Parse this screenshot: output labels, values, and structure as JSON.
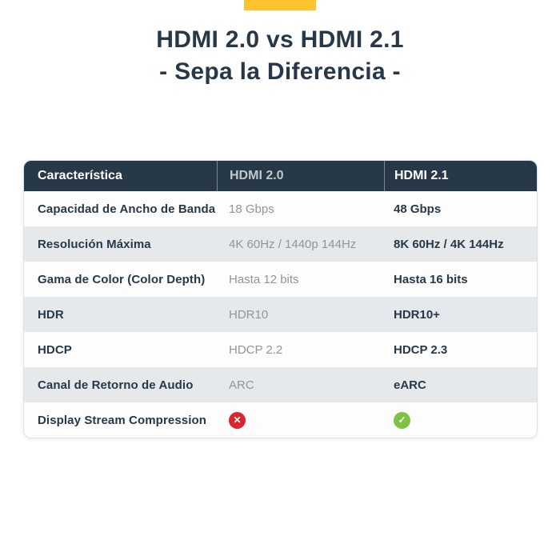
{
  "accent": {
    "bar_color": "#fdc42f"
  },
  "header": {
    "title_line1": "HDMI 2.0 vs HDMI 2.1",
    "title_line2": "- Sepa la Diferencia -"
  },
  "table": {
    "columns": [
      "Característica",
      "HDMI 2.0",
      "HDMI 2.1"
    ],
    "rows": [
      {
        "feature": "Capacidad de Ancho de Banda",
        "hdmi20": "18 Gbps",
        "hdmi21": "48 Gbps"
      },
      {
        "feature": "Resolución Máxima",
        "hdmi20": "4K 60Hz / 1440p 144Hz",
        "hdmi21": "8K 60Hz / 4K 144Hz"
      },
      {
        "feature": "Gama de Color (Color Depth)",
        "hdmi20": "Hasta 12 bits",
        "hdmi21": "Hasta 16 bits"
      },
      {
        "feature": "HDR",
        "hdmi20": "HDR10",
        "hdmi21": "HDR10+"
      },
      {
        "feature": "HDCP",
        "hdmi20": "HDCP 2.2",
        "hdmi21": "HDCP 2.3"
      },
      {
        "feature": "Canal de Retorno de Audio",
        "hdmi20": "ARC",
        "hdmi21": "eARC"
      },
      {
        "feature": "Display Stream Compression",
        "hdmi20": {
          "icon": "cross"
        },
        "hdmi21": {
          "icon": "check"
        }
      }
    ],
    "icons": {
      "cross": {
        "name": "cross-icon",
        "glyph": "✕",
        "color": "#d8272e"
      },
      "check": {
        "name": "check-icon",
        "glyph": "✓",
        "color": "#7dc242"
      }
    }
  }
}
